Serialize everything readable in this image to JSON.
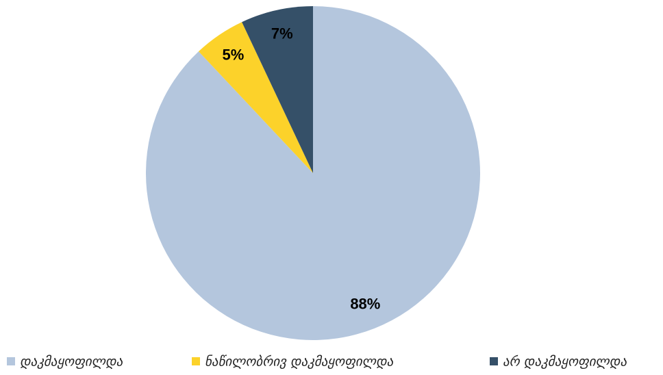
{
  "chart_data": {
    "type": "pie",
    "categories": [
      "დაკმაყოფილდა",
      "ნაწილობრივ დაკმაყოფილდა",
      "არ დაკმაყოფილდა"
    ],
    "values": [
      88,
      5,
      7
    ],
    "value_labels": [
      "88%",
      "5%",
      "7%"
    ],
    "colors": [
      "#b4c6dd",
      "#fcd22a",
      "#355068"
    ],
    "legend": "bottom"
  }
}
